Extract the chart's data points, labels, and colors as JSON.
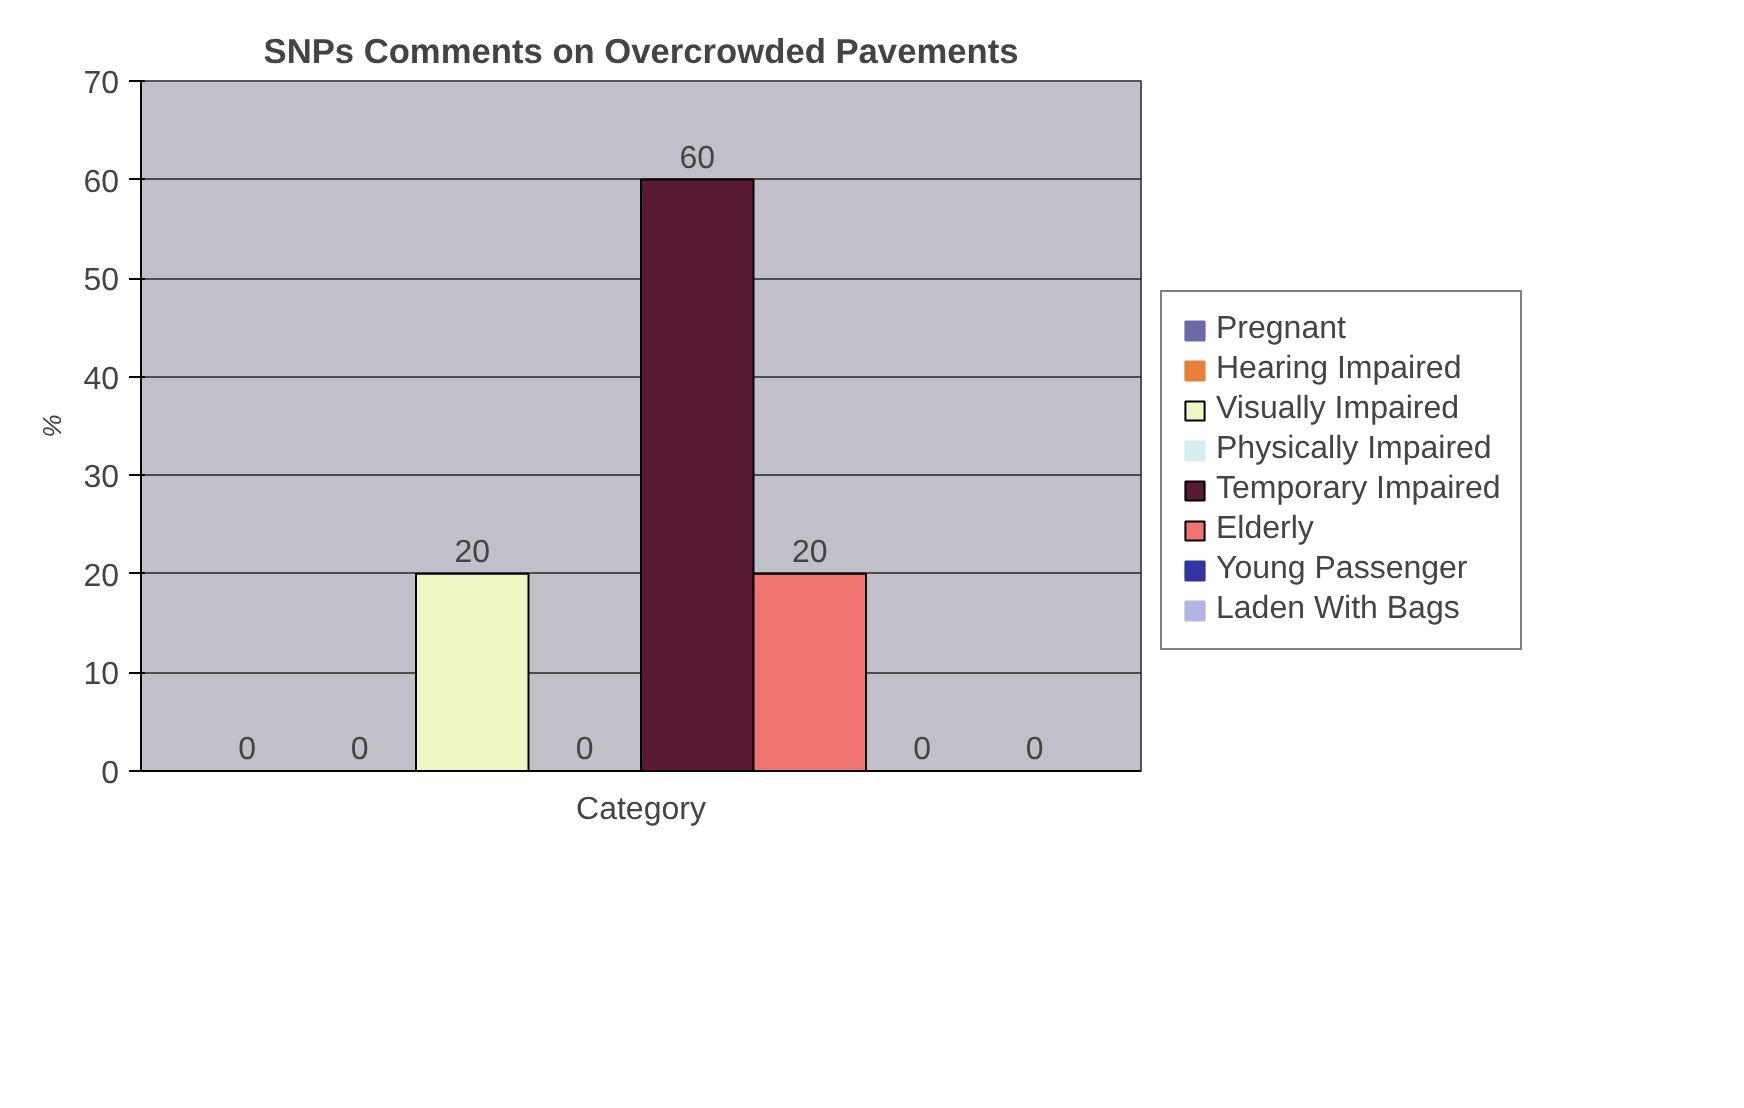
{
  "chart_data": {
    "type": "bar",
    "title": "SNPs Comments on Overcrowded Pavements",
    "ylabel": "%",
    "categories": [
      "Category"
    ],
    "series": [
      {
        "name": "Pregnant",
        "color": "#6a6aa8",
        "values": [
          0
        ]
      },
      {
        "name": "Hearing Impaired",
        "color": "#e8803a",
        "values": [
          0
        ]
      },
      {
        "name": "Visually Impaired",
        "color": "#eef6c4",
        "values": [
          20
        ]
      },
      {
        "name": "Physically Impaired",
        "color": "#d6eef0",
        "values": [
          0
        ]
      },
      {
        "name": "Temporary Impaired",
        "color": "#5a1a34",
        "values": [
          60
        ]
      },
      {
        "name": "Elderly",
        "color": "#f07470",
        "values": [
          20
        ]
      },
      {
        "name": "Young Passenger",
        "color": "#3434a0",
        "values": [
          0
        ]
      },
      {
        "name": "Laden With Bags",
        "color": "#b4b4e4",
        "values": [
          0
        ]
      }
    ],
    "ylim": [
      0,
      70
    ],
    "yticks": [
      0,
      10,
      20,
      30,
      40,
      50,
      60,
      70
    ],
    "grid": "y",
    "legend": "right",
    "data_labels": true
  }
}
